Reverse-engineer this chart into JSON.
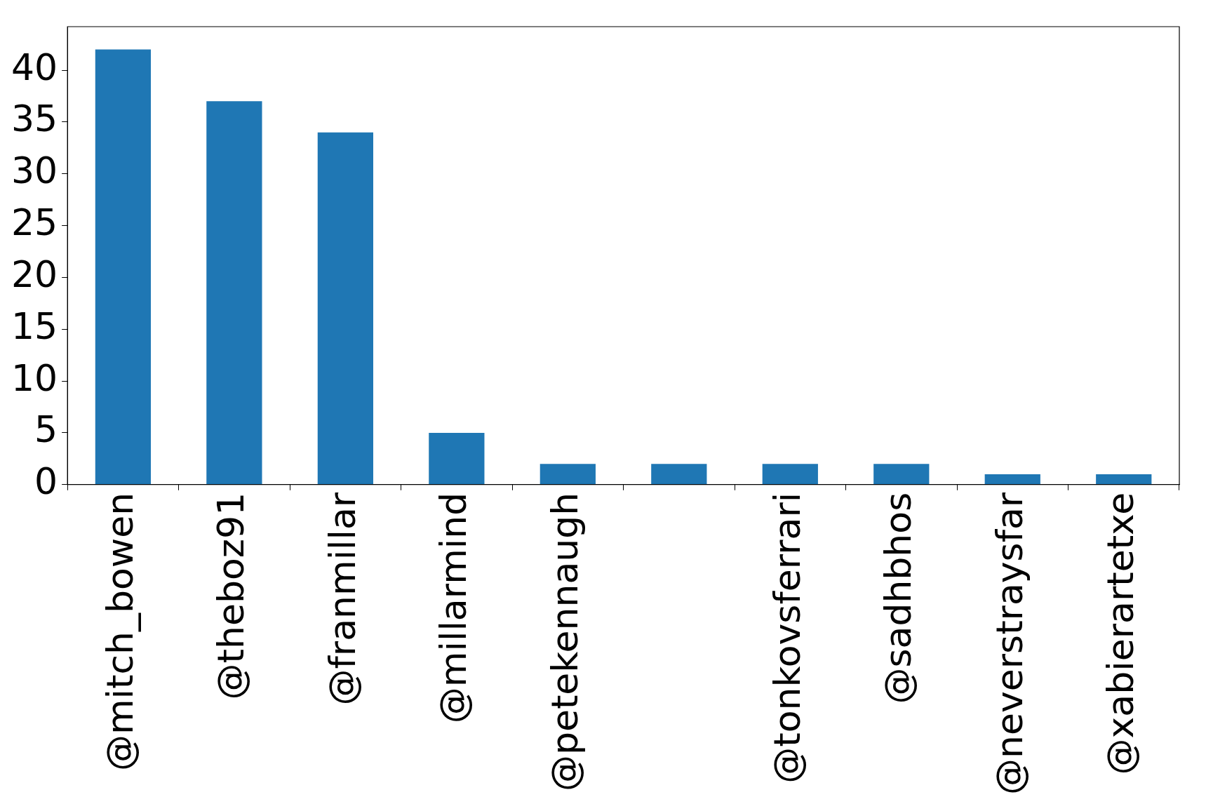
{
  "chart_data": {
    "type": "bar",
    "categories": [
      "@mitch_bowen",
      "@theboz91",
      "@franmillar",
      "@millarmind",
      "@petekennaugh",
      null,
      "@tonkovsferrari",
      "@sadhbhos",
      "@neverstraysfar",
      "@xabierartetxe"
    ],
    "values": [
      42,
      37,
      34,
      5,
      2,
      2,
      2,
      2,
      1,
      1
    ],
    "color": "#1f77b4",
    "ylim": [
      0,
      44.2
    ],
    "yticks": [
      0,
      5,
      10,
      15,
      20,
      25,
      30,
      35,
      40
    ],
    "grid": false,
    "legend": false
  }
}
